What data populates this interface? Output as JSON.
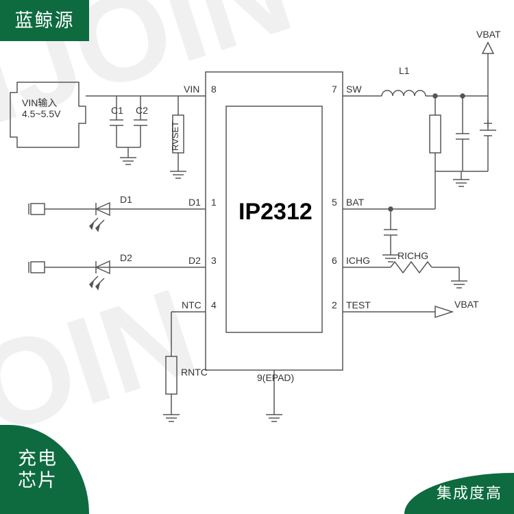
{
  "brand": "蓝鲸源",
  "overlay_bottom_left": "充电\n芯片",
  "overlay_bottom_right": "集成度高",
  "overlay_color": "#0d6b3f",
  "watermark_text": "NJOIN",
  "chip": {
    "name": "IP2312",
    "epad_label": "9(EPAD)",
    "pins_left": [
      {
        "num": "8",
        "label": "VIN"
      },
      {
        "num": "1",
        "label": "D1"
      },
      {
        "num": "3",
        "label": "D2"
      },
      {
        "num": "4",
        "label": "NTC"
      }
    ],
    "pins_right": [
      {
        "num": "7",
        "label": "SW"
      },
      {
        "num": "5",
        "label": "BAT"
      },
      {
        "num": "6",
        "label": "ICHG"
      },
      {
        "num": "2",
        "label": "TEST"
      }
    ]
  },
  "components": {
    "vin_label1": "VIN输入",
    "vin_label2": "4.5~5.5V",
    "C1": "C1",
    "C2": "C2",
    "RVSET": "RVSET",
    "D1": "D1",
    "D2": "D2",
    "RNTC": "RNTC",
    "L1": "L1",
    "RICHG": "RICHG",
    "VBAT_top": "VBAT",
    "VBAT_right": "VBAT"
  },
  "colors": {
    "line": "#555555",
    "text": "#333333",
    "chip_border": "#333333"
  }
}
